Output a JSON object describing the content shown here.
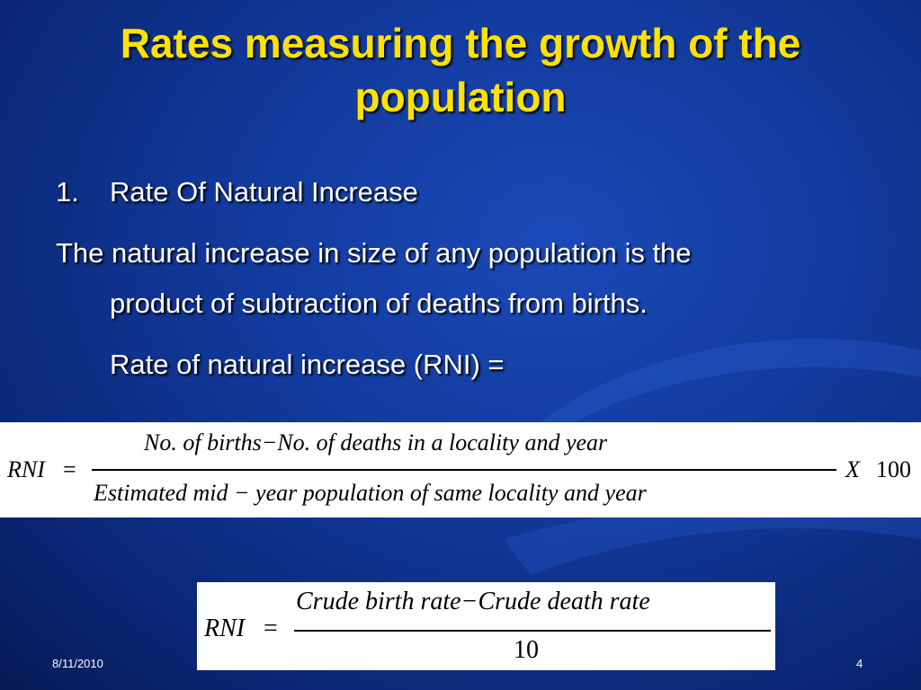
{
  "slide": {
    "title": "Rates measuring the growth of the population",
    "list_number": "1.",
    "heading": "Rate Of Natural Increase",
    "para_line1": "The natural increase in size of any population is the",
    "para_line2": "product of subtraction of deaths from births.",
    "para_line3": "Rate of natural increase (RNI) ="
  },
  "formula1": {
    "lhs": "RNI",
    "equals": "=",
    "numerator": "No. of births−No. of deaths in a locality and year",
    "denominator": "Estimated mid − year population of same locality and year",
    "multiplier": "X",
    "factor": "100"
  },
  "formula2": {
    "lhs": "RNI",
    "equals": "=",
    "numerator": "Crude birth rate−Crude death rate",
    "denominator": "10"
  },
  "footer": {
    "date": "8/11/2010",
    "page_number": "4"
  },
  "colors": {
    "background": "#123a9c",
    "title": "#ffe200",
    "text": "#ffffff"
  }
}
